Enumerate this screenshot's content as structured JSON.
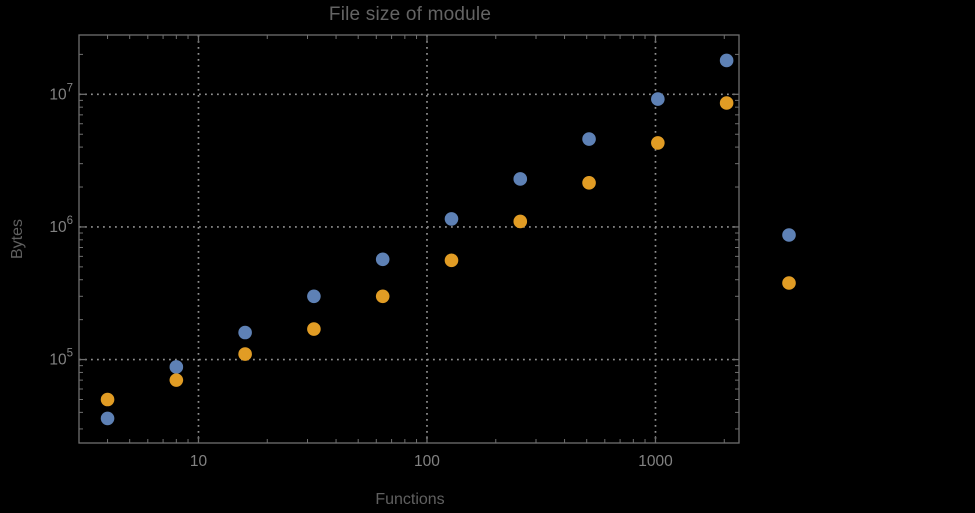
{
  "colors": {
    "background": "#000000",
    "frame": "#6f6f6f",
    "grid": "#8f8f8f",
    "tick_label": "#828282",
    "title": "#646464",
    "axis_label": "#606060",
    "series_blue": "#5E81B5",
    "series_orange": "#E19C24"
  },
  "chart_data": {
    "type": "scatter",
    "title": "File size of module",
    "xlabel": "Functions",
    "ylabel": "Bytes",
    "xscale": "log",
    "yscale": "log",
    "xlim": [
      3,
      2320
    ],
    "ylim": [
      23500,
      28000000
    ],
    "grid": "dotted-major",
    "x_ticks": [
      10,
      100,
      1000
    ],
    "x_tick_labels": [
      "10",
      "100",
      "1000"
    ],
    "y_ticks": [
      100000,
      1000000,
      10000000
    ],
    "y_tick_labels": [
      "10^5",
      "10^6",
      "10^7"
    ],
    "x": [
      4,
      8,
      16,
      32,
      64,
      128,
      256,
      512,
      1024,
      2048
    ],
    "series": [
      {
        "name": "series-1-blue",
        "color": "#5E81B5",
        "values": [
          36000,
          88000,
          160000,
          300000,
          570000,
          1150000,
          2300000,
          4600000,
          9200000,
          18000000
        ]
      },
      {
        "name": "series-2-orange",
        "color": "#E19C24",
        "values": [
          50000,
          70000,
          110000,
          170000,
          300000,
          560000,
          1100000,
          2150000,
          4300000,
          8600000
        ]
      }
    ],
    "legend": {
      "position": "right-outside",
      "labels_visible": false,
      "markers": [
        {
          "color": "#5E81B5",
          "label": ""
        },
        {
          "color": "#E19C24",
          "label": ""
        }
      ]
    }
  }
}
